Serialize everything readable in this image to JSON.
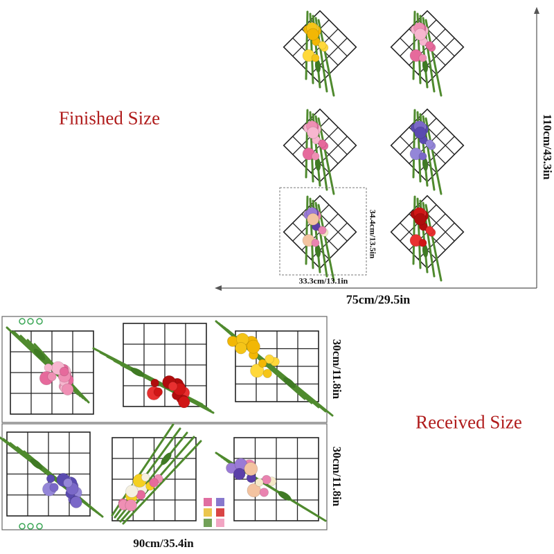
{
  "labels": {
    "finished_size": "Finished Size",
    "received_size": "Received Size",
    "total_height": "110cm/43.3in",
    "total_width": "75cm/29.5in",
    "single_height": "34.4cm/13.5in",
    "single_width": "33.3cm/13.1in",
    "sheet1_height": "30cm/11.8in",
    "sheet2_height": "30cm/11.8in",
    "sheet_width": "90cm/35.4in"
  },
  "colors": {
    "title_red": "#b01c1c",
    "grid_line": "#222222",
    "leaf_green": "#4f8a2e",
    "yellow_flower": "#f5c518",
    "pink_tulip": "#ef8fb4",
    "lavender": "#7a68c8",
    "red_rose": "#d01616"
  }
}
